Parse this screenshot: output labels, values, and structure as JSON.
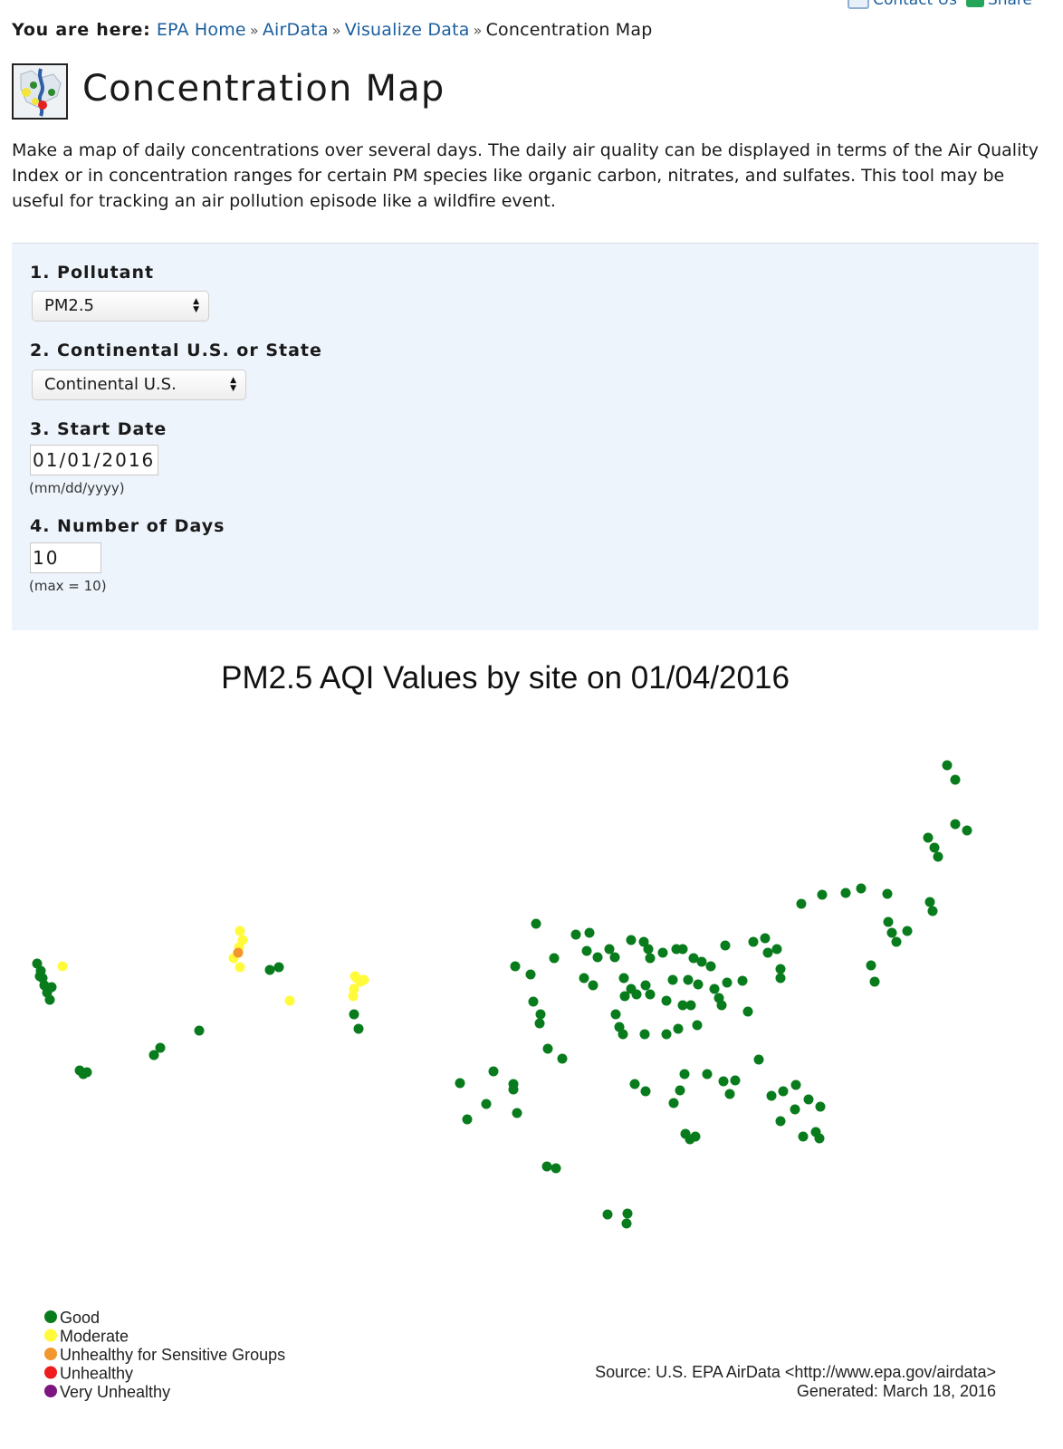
{
  "top_links": {
    "contact": "Contact Us",
    "share": "Share",
    "contact_icon": "envelope-icon",
    "share_icon": "share-icon"
  },
  "breadcrumb": {
    "prefix": "You are here:",
    "items": [
      "EPA Home",
      "AirData",
      "Visualize Data"
    ],
    "current": "Concentration Map",
    "separator": "»"
  },
  "header": {
    "title": "Concentration Map",
    "icon": "concentration-map-icon"
  },
  "intro": "Make a map of daily concentrations over several days. The daily air quality can be displayed in terms of the Air Quality Index or in concentration ranges for certain PM species like organic carbon, nitrates, and sulfates. This tool may be useful for tracking an air pollution episode like a wildfire event.",
  "form": {
    "pollutant_label": "1. Pollutant",
    "pollutant_value": "PM2.5",
    "region_label": "2. Continental U.S. or State",
    "region_value": "Continental U.S.",
    "start_label": "3. Start Date",
    "start_value": "01/01/2016",
    "start_hint": "(mm/dd/yyyy)",
    "days_label": "4. Number of Days",
    "days_value": "10",
    "days_hint": "(max = 10)"
  },
  "chart_data": {
    "type": "scatter",
    "title": "PM2.5 AQI Values by site on 01/04/2016",
    "categories": [
      {
        "name": "Good",
        "color": "#087c1c"
      },
      {
        "name": "Moderate",
        "color": "#fffb3a"
      },
      {
        "name": "Unhealthy for Sensitive Groups",
        "color": "#f2962e"
      },
      {
        "name": "Unhealthy",
        "color": "#ee1c1c"
      },
      {
        "name": "Very Unhealthy",
        "color": "#7d1680"
      }
    ],
    "legend_position": "bottom-left",
    "source": "Source: U.S. EPA AirData <http://www.epa.gov/airdata>",
    "generated": "Generated: March 18, 2016",
    "sites": {
      "Good": [
        [
          41,
          1064
        ],
        [
          45,
          1072
        ],
        [
          47,
          1080
        ],
        [
          49,
          1088
        ],
        [
          52,
          1096
        ],
        [
          55,
          1104
        ],
        [
          57,
          1090
        ],
        [
          44,
          1078
        ],
        [
          88,
          1182
        ],
        [
          92,
          1186
        ],
        [
          96,
          1184
        ],
        [
          170,
          1165
        ],
        [
          177,
          1157
        ],
        [
          220,
          1138
        ],
        [
          298,
          1071
        ],
        [
          308,
          1068
        ],
        [
          391,
          1120
        ],
        [
          396,
          1136
        ],
        [
          592,
          1020
        ],
        [
          569,
          1067
        ],
        [
          586,
          1076
        ],
        [
          612,
          1058
        ],
        [
          589,
          1106
        ],
        [
          597,
          1120
        ],
        [
          596,
          1130
        ],
        [
          605,
          1158
        ],
        [
          621,
          1169
        ],
        [
          508,
          1196
        ],
        [
          545,
          1183
        ],
        [
          567,
          1197
        ],
        [
          567,
          1203
        ],
        [
          537,
          1219
        ],
        [
          571,
          1229
        ],
        [
          516,
          1236
        ],
        [
          604,
          1288
        ],
        [
          614,
          1290
        ],
        [
          671,
          1341
        ],
        [
          693,
          1340
        ],
        [
          692,
          1351
        ],
        [
          885,
          998
        ],
        [
          908,
          988
        ],
        [
          934,
          986
        ],
        [
          951,
          981
        ],
        [
          980,
          987
        ],
        [
          1046,
          845
        ],
        [
          1055,
          861
        ],
        [
          1055,
          910
        ],
        [
          1068,
          917
        ],
        [
          1025,
          925
        ],
        [
          1032,
          936
        ],
        [
          1036,
          946
        ],
        [
          1027,
          996
        ],
        [
          1030,
          1006
        ],
        [
          981,
          1018
        ],
        [
          985,
          1030
        ],
        [
          990,
          1040
        ],
        [
          1002,
          1028
        ],
        [
          962,
          1066
        ],
        [
          966,
          1084
        ],
        [
          636,
          1032
        ],
        [
          651,
          1030
        ],
        [
          648,
          1050
        ],
        [
          660,
          1057
        ],
        [
          673,
          1048
        ],
        [
          679,
          1057
        ],
        [
          697,
          1038
        ],
        [
          711,
          1040
        ],
        [
          716,
          1048
        ],
        [
          718,
          1058
        ],
        [
          732,
          1052
        ],
        [
          747,
          1048
        ],
        [
          754,
          1048
        ],
        [
          766,
          1058
        ],
        [
          775,
          1062
        ],
        [
          801,
          1044
        ],
        [
          832,
          1040
        ],
        [
          845,
          1036
        ],
        [
          848,
          1052
        ],
        [
          858,
          1048
        ],
        [
          862,
          1070
        ],
        [
          862,
          1080
        ],
        [
          645,
          1080
        ],
        [
          655,
          1088
        ],
        [
          689,
          1080
        ],
        [
          697,
          1092
        ],
        [
          690,
          1100
        ],
        [
          703,
          1098
        ],
        [
          713,
          1088
        ],
        [
          718,
          1098
        ],
        [
          743,
          1082
        ],
        [
          760,
          1082
        ],
        [
          771,
          1087
        ],
        [
          785,
          1067
        ],
        [
          803,
          1085
        ],
        [
          820,
          1083
        ],
        [
          680,
          1120
        ],
        [
          684,
          1134
        ],
        [
          688,
          1142
        ],
        [
          712,
          1142
        ],
        [
          736,
          1105
        ],
        [
          754,
          1110
        ],
        [
          763,
          1110
        ],
        [
          770,
          1132
        ],
        [
          789,
          1092
        ],
        [
          794,
          1102
        ],
        [
          797,
          1110
        ],
        [
          749,
          1136
        ],
        [
          736,
          1142
        ],
        [
          826,
          1117
        ],
        [
          838,
          1170
        ],
        [
          756,
          1186
        ],
        [
          781,
          1186
        ],
        [
          799,
          1194
        ],
        [
          812,
          1193
        ],
        [
          701,
          1197
        ],
        [
          713,
          1205
        ],
        [
          751,
          1204
        ],
        [
          744,
          1218
        ],
        [
          806,
          1208
        ],
        [
          852,
          1210
        ],
        [
          865,
          1205
        ],
        [
          879,
          1198
        ],
        [
          878,
          1225
        ],
        [
          893,
          1214
        ],
        [
          906,
          1222
        ],
        [
          862,
          1238
        ],
        [
          887,
          1255
        ],
        [
          901,
          1250
        ],
        [
          905,
          1257
        ],
        [
          757,
          1252
        ],
        [
          762,
          1258
        ],
        [
          768,
          1255
        ]
      ],
      "Moderate": [
        [
          69,
          1067
        ],
        [
          265,
          1028
        ],
        [
          268,
          1038
        ],
        [
          264,
          1046
        ],
        [
          258,
          1058
        ],
        [
          265,
          1068
        ],
        [
          320,
          1105
        ],
        [
          392,
          1078
        ],
        [
          398,
          1084
        ],
        [
          391,
          1092
        ],
        [
          390,
          1100
        ],
        [
          394,
          1080
        ],
        [
          402,
          1082
        ]
      ],
      "Unhealthy for Sensitive Groups": [
        [
          263,
          1052
        ]
      ],
      "Unhealthy": [],
      "Very Unhealthy": []
    }
  }
}
